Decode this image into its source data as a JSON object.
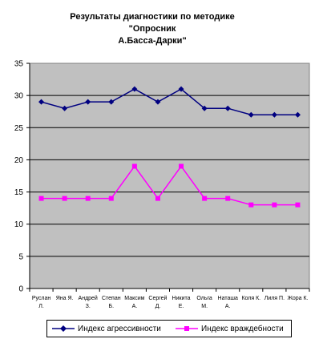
{
  "chart_data": {
    "type": "line",
    "title": "Результаты диагностики по методике \"Опросник\nА.Басса-Дарки\"",
    "categories": [
      [
        "Руслан",
        "Л."
      ],
      [
        "Яна Я."
      ],
      [
        "Андрей",
        "З."
      ],
      [
        "Степан",
        "Б."
      ],
      [
        "Максим",
        "А."
      ],
      [
        "Сергей",
        "Д."
      ],
      [
        "Никита",
        "Е."
      ],
      [
        "Ольга",
        "М."
      ],
      [
        "Наташа",
        "А."
      ],
      [
        "Коля К."
      ],
      [
        "Лиля П."
      ],
      [
        "Жора К."
      ]
    ],
    "series": [
      {
        "name": "Индекс агрессивности",
        "values": [
          29,
          28,
          29,
          29,
          31,
          29,
          31,
          28,
          28,
          27,
          27,
          27
        ],
        "color": "#000080",
        "marker": "diamond"
      },
      {
        "name": "Индекс враждебности",
        "values": [
          14,
          14,
          14,
          14,
          19,
          14,
          19,
          14,
          14,
          13,
          13,
          13
        ],
        "color": "#FF00FF",
        "marker": "square"
      }
    ],
    "ylim": [
      0,
      35
    ],
    "yticks": [
      0,
      5,
      10,
      15,
      20,
      25,
      30,
      35
    ],
    "grid": true,
    "plot_background": "#C0C0C0",
    "legend": "bottom"
  }
}
